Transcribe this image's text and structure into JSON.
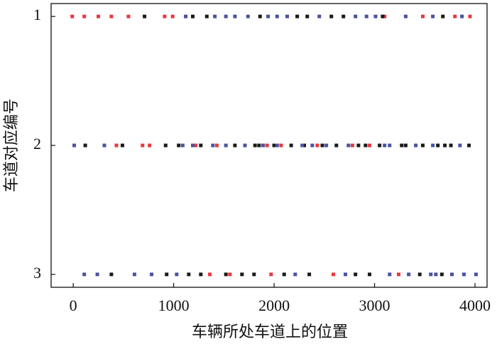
{
  "chart_data": {
    "type": "scatter",
    "x_label": "车辆所处车道上的位置",
    "y_label": "车道对应编号",
    "xlim": [
      -220,
      4120
    ],
    "xticks": [
      0,
      1000,
      2000,
      3000,
      4000
    ],
    "ylim": [
      3.1,
      0.9
    ],
    "yticks": [
      1,
      2,
      3
    ],
    "grid": false,
    "series": [
      {
        "color": "#e8383d",
        "x": [
          -10,
          110,
          250,
          380,
          550,
          910,
          990,
          3100,
          3480,
          3800,
          3950,
          430,
          690,
          760,
          1220,
          1430,
          1930,
          2070,
          2430,
          2780,
          2950,
          1360,
          1560,
          1970,
          2590,
          3240
        ],
        "y": [
          1,
          1,
          1,
          1,
          1,
          1,
          1,
          1,
          1,
          1,
          1,
          2,
          2,
          2,
          2,
          2,
          2,
          2,
          2,
          2,
          2,
          3,
          3,
          3,
          3,
          3
        ]
      },
      {
        "color": "#1a1a1a",
        "x": [
          710,
          1190,
          1330,
          1860,
          2230,
          2330,
          2570,
          2690,
          3080,
          3680,
          120,
          490,
          920,
          1050,
          1270,
          1610,
          1810,
          1850,
          2000,
          2170,
          2300,
          2480,
          2620,
          2840,
          2910,
          3050,
          3270,
          3310,
          3480,
          3630,
          3700,
          3760,
          3940,
          380,
          930,
          1150,
          1270,
          1520,
          1680,
          1800,
          2100,
          2350,
          2810,
          2950,
          3450,
          3670
        ],
        "y": [
          1,
          1,
          1,
          1,
          1,
          1,
          1,
          1,
          1,
          1,
          2,
          2,
          2,
          2,
          2,
          2,
          2,
          2,
          2,
          2,
          2,
          2,
          2,
          2,
          2,
          2,
          2,
          2,
          2,
          2,
          2,
          2,
          2,
          3,
          3,
          3,
          3,
          3,
          3,
          3,
          3,
          3,
          3,
          3,
          3,
          3
        ]
      },
      {
        "color": "#4a53a0",
        "x": [
          1120,
          1410,
          1520,
          1610,
          1740,
          1940,
          2030,
          2130,
          2450,
          2810,
          2920,
          3010,
          3310,
          3580,
          3870,
          10,
          310,
          1090,
          1190,
          1390,
          1520,
          1710,
          1890,
          2030,
          2280,
          2380,
          2520,
          2740,
          3100,
          3150,
          3410,
          3580,
          3850,
          110,
          240,
          610,
          780,
          1030,
          2210,
          2710,
          3150,
          3340,
          3560,
          3610,
          3770,
          3890,
          4010
        ],
        "y": [
          1,
          1,
          1,
          1,
          1,
          1,
          1,
          1,
          1,
          1,
          1,
          1,
          1,
          1,
          1,
          2,
          2,
          2,
          2,
          2,
          2,
          2,
          2,
          2,
          2,
          2,
          2,
          2,
          2,
          2,
          2,
          2,
          2,
          3,
          3,
          3,
          3,
          3,
          3,
          3,
          3,
          3,
          3,
          3,
          3,
          3,
          3
        ]
      }
    ]
  }
}
